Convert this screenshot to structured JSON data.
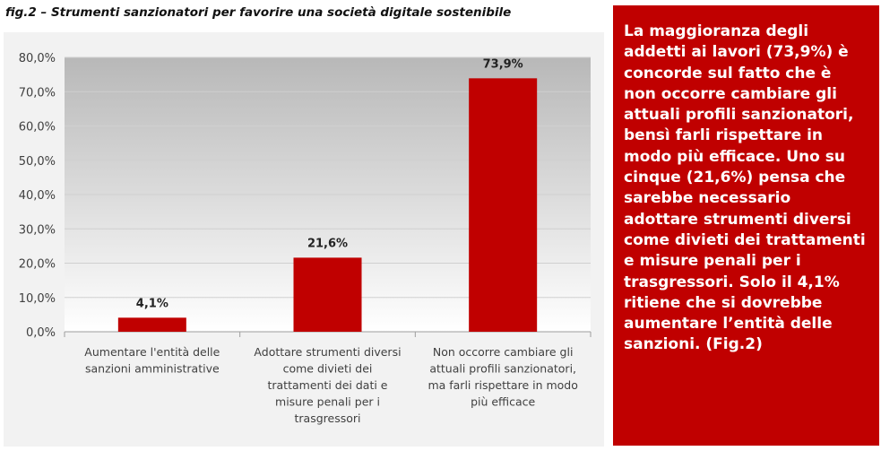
{
  "figure_title": "fig.2 – Strumenti sanzionatori per favorire una società digitale sostenibile",
  "side_note": "La maggioranza degli addetti ai lavori (73,9%) è concorde sul fatto che è non occorre cambiare gli attuali profili sanzionatori, bensì farli rispettare in modo più efficace. Uno su cinque (21,6%) pensa che sarebbe necessario adottare strumenti diversi come divieti dei trattamenti e misure penali per i trasgressori. Solo il 4,1% ritiene che si dovrebbe aumentare l’entità delle sanzioni.  (Fig.2)",
  "colors": {
    "bar": "#c00000",
    "side_box": "#c00000",
    "plot_background": "#f2f2f2"
  },
  "chart_data": {
    "type": "bar",
    "title": "fig.2 – Strumenti sanzionatori per favorire una società digitale sostenibile",
    "categories": [
      [
        "Aumentare l'entità delle",
        "sanzioni amministrative"
      ],
      [
        "Adottare strumenti diversi",
        "come divieti dei",
        "trattamenti dei dati e",
        "misure penali per i",
        "trasgressori"
      ],
      [
        "Non occorre cambiare gli",
        "attuali profili sanzionatori,",
        "ma farli rispettare in modo",
        "più efficace"
      ]
    ],
    "values": [
      4.1,
      21.6,
      73.9
    ],
    "data_labels": [
      "4,1%",
      "21,6%",
      "73,9%"
    ],
    "ylim": [
      0,
      80
    ],
    "yticks": [
      "0,0%",
      "10,0%",
      "20,0%",
      "30,0%",
      "40,0%",
      "50,0%",
      "60,0%",
      "70,0%",
      "80,0%"
    ],
    "grid": true,
    "legend": "none",
    "xlabel": "",
    "ylabel": ""
  }
}
